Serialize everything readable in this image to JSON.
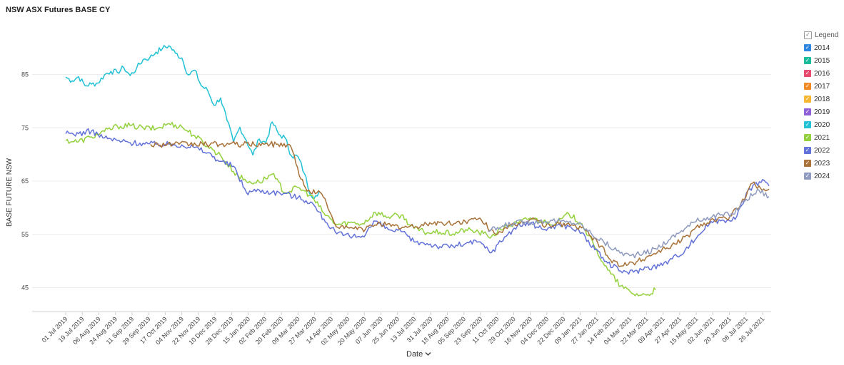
{
  "title": "NSW ASX Futures BASE CY",
  "legend": {
    "title": "Legend",
    "items": [
      {
        "name": "2014",
        "color": "#2e86de"
      },
      {
        "name": "2015",
        "color": "#1abc9c"
      },
      {
        "name": "2016",
        "color": "#e84a6f"
      },
      {
        "name": "2017",
        "color": "#f08a24"
      },
      {
        "name": "2018",
        "color": "#f5b731"
      },
      {
        "name": "2019",
        "color": "#8e5fd6"
      },
      {
        "name": "2020",
        "color": "#22c1d6"
      },
      {
        "name": "2021",
        "color": "#93d13c"
      },
      {
        "name": "2022",
        "color": "#6272d8"
      },
      {
        "name": "2023",
        "color": "#a87238"
      },
      {
        "name": "2024",
        "color": "#8f9bbf"
      }
    ]
  },
  "x_selector": {
    "label": "Date",
    "icon": "chevron-down-icon"
  },
  "chart_data": {
    "type": "line",
    "title": "NSW ASX Futures BASE CY",
    "xlabel": "Date",
    "ylabel": "BASE FUTURE NSW",
    "x_ticks": [
      "01 Jul 2019",
      "19 Jul 2019",
      "06 Aug 2019",
      "24 Aug 2019",
      "11 Sep 2019",
      "29 Sep 2019",
      "17 Oct 2019",
      "04 Nov 2019",
      "22 Nov 2019",
      "10 Dec 2019",
      "28 Dec 2019",
      "15 Jan 2020",
      "02 Feb 2020",
      "20 Feb 2020",
      "09 Mar 2020",
      "27 Mar 2020",
      "14 Apr 2020",
      "02 May 2020",
      "20 May 2020",
      "07 Jun 2020",
      "25 Jun 2020",
      "13 Jul 2020",
      "31 Jul 2020",
      "18 Aug 2020",
      "05 Sep 2020",
      "23 Sep 2020",
      "11 Oct 2020",
      "29 Oct 2020",
      "16 Nov 2020",
      "04 Dec 2020",
      "22 Dec 2020",
      "09 Jan 2021",
      "27 Jan 2021",
      "14 Feb 2021",
      "04 Mar 2021",
      "22 Mar 2021",
      "09 Apr 2021",
      "27 Apr 2021",
      "15 May 2021",
      "02 Jun 2021",
      "20 Jun 2021",
      "08 Jul 2021",
      "26 Jul 2021"
    ],
    "y_ticks": [
      45,
      55,
      65,
      75,
      85
    ],
    "ylim": [
      39.5,
      93
    ],
    "grid": "horizontal",
    "legend_position": "right",
    "series": [
      {
        "name": "2020",
        "color": "#22c1d6",
        "points": [
          [
            "2019-07-01",
            84.5
          ],
          [
            "2019-07-08",
            83.8
          ],
          [
            "2019-07-15",
            84.6
          ],
          [
            "2019-07-22",
            82.9
          ],
          [
            "2019-07-29",
            83.2
          ],
          [
            "2019-08-05",
            83.4
          ],
          [
            "2019-08-12",
            84.9
          ],
          [
            "2019-08-19",
            85.6
          ],
          [
            "2019-08-26",
            85.4
          ],
          [
            "2019-09-02",
            86.3
          ],
          [
            "2019-09-09",
            84.8
          ],
          [
            "2019-09-16",
            86.2
          ],
          [
            "2019-09-23",
            87.8
          ],
          [
            "2019-09-30",
            88.1
          ],
          [
            "2019-10-07",
            89.2
          ],
          [
            "2019-10-14",
            89.9
          ],
          [
            "2019-10-21",
            90.4
          ],
          [
            "2019-10-28",
            89.0
          ],
          [
            "2019-11-04",
            88.1
          ],
          [
            "2019-11-11",
            84.9
          ],
          [
            "2019-11-18",
            85.8
          ],
          [
            "2019-11-25",
            82.9
          ],
          [
            "2019-12-02",
            82.0
          ],
          [
            "2019-12-09",
            79.2
          ],
          [
            "2019-12-16",
            80.6
          ],
          [
            "2019-12-23",
            76.4
          ],
          [
            "2019-12-30",
            72.3
          ],
          [
            "2020-01-06",
            75.1
          ],
          [
            "2020-01-13",
            72.6
          ],
          [
            "2020-01-20",
            69.9
          ],
          [
            "2020-01-27",
            72.9
          ],
          [
            "2020-02-03",
            72.2
          ],
          [
            "2020-02-10",
            76.1
          ],
          [
            "2020-02-17",
            73.8
          ],
          [
            "2020-02-24",
            73.1
          ],
          [
            "2020-03-02",
            69.7
          ],
          [
            "2020-03-09",
            69.6
          ],
          [
            "2020-03-16",
            66.4
          ],
          [
            "2020-03-23",
            62.3
          ],
          [
            "2020-03-30",
            62.2
          ],
          [
            "2020-04-01",
            63.0
          ]
        ]
      },
      {
        "name": "2021",
        "color": "#93d13c",
        "points": [
          [
            "2019-07-01",
            72.6
          ],
          [
            "2019-07-15",
            72.4
          ],
          [
            "2019-07-29",
            73.3
          ],
          [
            "2019-08-12",
            74.3
          ],
          [
            "2019-08-26",
            75.3
          ],
          [
            "2019-09-09",
            75.4
          ],
          [
            "2019-09-23",
            75.0
          ],
          [
            "2019-10-07",
            74.8
          ],
          [
            "2019-10-21",
            75.8
          ],
          [
            "2019-11-04",
            75.2
          ],
          [
            "2019-11-18",
            73.5
          ],
          [
            "2019-12-02",
            71.6
          ],
          [
            "2019-12-16",
            69.8
          ],
          [
            "2019-12-30",
            66.8
          ],
          [
            "2020-01-13",
            64.9
          ],
          [
            "2020-01-27",
            64.8
          ],
          [
            "2020-02-10",
            66.3
          ],
          [
            "2020-02-24",
            62.8
          ],
          [
            "2020-03-09",
            63.8
          ],
          [
            "2020-03-23",
            62.3
          ],
          [
            "2020-04-06",
            59.0
          ],
          [
            "2020-04-20",
            56.8
          ],
          [
            "2020-05-04",
            57.2
          ],
          [
            "2020-05-18",
            57.0
          ],
          [
            "2020-06-01",
            59.1
          ],
          [
            "2020-06-15",
            58.3
          ],
          [
            "2020-06-29",
            58.6
          ],
          [
            "2020-07-13",
            56.1
          ],
          [
            "2020-07-27",
            55.3
          ],
          [
            "2020-08-10",
            55.4
          ],
          [
            "2020-08-24",
            55.1
          ],
          [
            "2020-09-07",
            55.9
          ],
          [
            "2020-09-21",
            55.4
          ],
          [
            "2020-10-05",
            54.6
          ],
          [
            "2020-10-19",
            56.4
          ],
          [
            "2020-11-02",
            57.1
          ],
          [
            "2020-11-16",
            58.1
          ],
          [
            "2020-11-30",
            57.4
          ],
          [
            "2020-12-14",
            57.1
          ],
          [
            "2020-12-28",
            58.8
          ],
          [
            "2021-01-11",
            57.0
          ],
          [
            "2021-01-25",
            52.5
          ],
          [
            "2021-02-08",
            48.3
          ],
          [
            "2021-02-22",
            45.3
          ],
          [
            "2021-03-08",
            43.8
          ],
          [
            "2021-03-22",
            43.6
          ],
          [
            "2021-04-01",
            44.6
          ]
        ]
      },
      {
        "name": "2022",
        "color": "#6272d8",
        "points": [
          [
            "2019-07-01",
            73.9
          ],
          [
            "2019-07-15",
            73.9
          ],
          [
            "2019-07-29",
            74.4
          ],
          [
            "2019-08-12",
            73.1
          ],
          [
            "2019-08-26",
            72.6
          ],
          [
            "2019-09-09",
            72.2
          ],
          [
            "2019-09-23",
            72.1
          ],
          [
            "2019-10-07",
            71.9
          ],
          [
            "2019-10-21",
            71.9
          ],
          [
            "2019-11-04",
            71.8
          ],
          [
            "2019-11-18",
            71.3
          ],
          [
            "2019-12-02",
            70.3
          ],
          [
            "2019-12-16",
            68.7
          ],
          [
            "2019-12-30",
            67.8
          ],
          [
            "2020-01-13",
            62.9
          ],
          [
            "2020-01-27",
            63.3
          ],
          [
            "2020-02-10",
            62.9
          ],
          [
            "2020-02-24",
            62.7
          ],
          [
            "2020-03-09",
            61.9
          ],
          [
            "2020-03-23",
            61.1
          ],
          [
            "2020-04-06",
            57.9
          ],
          [
            "2020-04-20",
            55.1
          ],
          [
            "2020-05-04",
            54.6
          ],
          [
            "2020-05-18",
            54.7
          ],
          [
            "2020-06-01",
            57.5
          ],
          [
            "2020-06-15",
            55.9
          ],
          [
            "2020-06-29",
            55.5
          ],
          [
            "2020-07-13",
            53.6
          ],
          [
            "2020-07-27",
            53.3
          ],
          [
            "2020-08-10",
            52.7
          ],
          [
            "2020-08-24",
            52.8
          ],
          [
            "2020-09-07",
            53.3
          ],
          [
            "2020-09-21",
            53.6
          ],
          [
            "2020-10-05",
            51.6
          ],
          [
            "2020-10-19",
            54.5
          ],
          [
            "2020-11-02",
            56.6
          ],
          [
            "2020-11-16",
            57.1
          ],
          [
            "2020-11-30",
            55.9
          ],
          [
            "2020-12-14",
            56.7
          ],
          [
            "2020-12-28",
            56.5
          ],
          [
            "2021-01-11",
            55.3
          ],
          [
            "2021-01-25",
            52.1
          ],
          [
            "2021-02-08",
            49.6
          ],
          [
            "2021-02-22",
            48.1
          ],
          [
            "2021-03-08",
            47.9
          ],
          [
            "2021-03-22",
            48.8
          ],
          [
            "2021-04-05",
            49.1
          ],
          [
            "2021-04-19",
            50.4
          ],
          [
            "2021-05-03",
            52.1
          ],
          [
            "2021-05-17",
            54.8
          ],
          [
            "2021-05-31",
            57.4
          ],
          [
            "2021-06-14",
            57.6
          ],
          [
            "2021-06-28",
            58.4
          ],
          [
            "2021-07-12",
            63.6
          ],
          [
            "2021-07-26",
            65.3
          ],
          [
            "2021-08-02",
            64.1
          ]
        ]
      },
      {
        "name": "2023",
        "color": "#a87238",
        "points": [
          [
            "2019-10-01",
            71.9
          ],
          [
            "2019-11-01",
            71.9
          ],
          [
            "2019-12-01",
            71.9
          ],
          [
            "2020-01-01",
            71.9
          ],
          [
            "2020-02-01",
            71.9
          ],
          [
            "2020-02-28",
            71.9
          ],
          [
            "2020-03-05",
            69.8
          ],
          [
            "2020-03-12",
            65.4
          ],
          [
            "2020-03-19",
            63.1
          ],
          [
            "2020-04-02",
            62.9
          ],
          [
            "2020-04-09",
            60.8
          ],
          [
            "2020-04-16",
            57.8
          ],
          [
            "2020-04-23",
            56.1
          ],
          [
            "2020-05-07",
            56.2
          ],
          [
            "2020-05-21",
            55.9
          ],
          [
            "2020-06-04",
            57.3
          ],
          [
            "2020-06-18",
            56.5
          ],
          [
            "2020-07-02",
            56.3
          ],
          [
            "2020-07-16",
            56.4
          ],
          [
            "2020-07-30",
            57.2
          ],
          [
            "2020-08-13",
            57.0
          ],
          [
            "2020-08-27",
            57.1
          ],
          [
            "2020-09-10",
            57.6
          ],
          [
            "2020-09-24",
            57.7
          ],
          [
            "2020-10-08",
            55.2
          ],
          [
            "2020-10-22",
            56.1
          ],
          [
            "2020-11-05",
            57.1
          ],
          [
            "2020-11-19",
            58.1
          ],
          [
            "2020-12-03",
            56.6
          ],
          [
            "2020-12-17",
            57.0
          ],
          [
            "2020-12-31",
            56.8
          ],
          [
            "2021-01-14",
            55.8
          ],
          [
            "2021-01-28",
            53.5
          ],
          [
            "2021-02-11",
            50.2
          ],
          [
            "2021-02-25",
            49.1
          ],
          [
            "2021-03-11",
            49.8
          ],
          [
            "2021-03-25",
            51.0
          ],
          [
            "2021-04-08",
            52.2
          ],
          [
            "2021-04-22",
            53.2
          ],
          [
            "2021-05-06",
            54.8
          ],
          [
            "2021-05-20",
            56.9
          ],
          [
            "2021-06-03",
            57.8
          ],
          [
            "2021-06-17",
            57.9
          ],
          [
            "2021-07-01",
            60.1
          ],
          [
            "2021-07-15",
            64.6
          ],
          [
            "2021-07-29",
            63.2
          ],
          [
            "2021-08-02",
            63.5
          ]
        ]
      },
      {
        "name": "2024",
        "color": "#8f9bbf",
        "points": [
          [
            "2020-10-01",
            55.6
          ],
          [
            "2020-10-15",
            56.3
          ],
          [
            "2020-10-29",
            57.2
          ],
          [
            "2020-11-12",
            57.3
          ],
          [
            "2020-11-26",
            57.4
          ],
          [
            "2020-12-10",
            57.6
          ],
          [
            "2020-12-24",
            57.3
          ],
          [
            "2021-01-07",
            57.1
          ],
          [
            "2021-01-21",
            55.2
          ],
          [
            "2021-02-04",
            53.5
          ],
          [
            "2021-02-18",
            51.9
          ],
          [
            "2021-03-04",
            51.0
          ],
          [
            "2021-03-18",
            51.3
          ],
          [
            "2021-04-01",
            52.3
          ],
          [
            "2021-04-15",
            53.9
          ],
          [
            "2021-04-29",
            55.7
          ],
          [
            "2021-05-13",
            57.3
          ],
          [
            "2021-05-27",
            58.2
          ],
          [
            "2021-06-10",
            58.6
          ],
          [
            "2021-06-24",
            58.8
          ],
          [
            "2021-07-08",
            61.6
          ],
          [
            "2021-07-22",
            63.3
          ],
          [
            "2021-08-02",
            62.1
          ]
        ]
      }
    ]
  }
}
